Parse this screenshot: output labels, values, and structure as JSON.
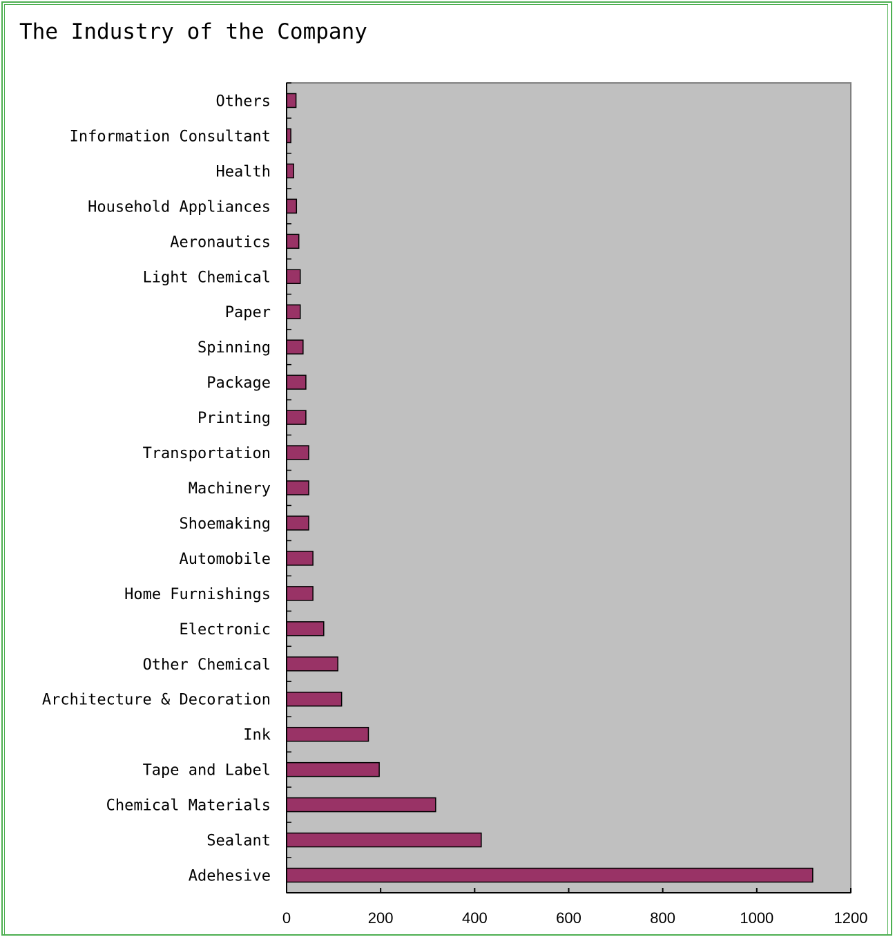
{
  "chart_data": {
    "type": "bar",
    "orientation": "horizontal",
    "title": "The Industry of the Company",
    "xlabel": "",
    "ylabel": "",
    "xlim": [
      0,
      1200
    ],
    "x_ticks": [
      0,
      200,
      400,
      600,
      800,
      1000,
      1200
    ],
    "grid": false,
    "legend": "none",
    "colors": {
      "bar": "#993366",
      "plot_background": "#c0c0c0",
      "frame": "#4caf50"
    },
    "categories": [
      "Others",
      "Information Consultant",
      "Health",
      "Household Appliances",
      "Aeronautics",
      "Light Chemical",
      "Paper",
      "Spinning",
      "Package",
      "Printing",
      "Transportation",
      "Machinery",
      "Shoemaking",
      "Automobile",
      "Home Furnishings",
      "Electronic",
      "Other Chemical",
      "Architecture & Decoration",
      "Ink",
      "Tape and Label",
      "Chemical Materials",
      "Sealant",
      "Adehesive"
    ],
    "values": [
      20,
      9,
      15,
      21,
      26,
      29,
      29,
      35,
      41,
      41,
      47,
      47,
      47,
      56,
      56,
      79,
      109,
      117,
      174,
      197,
      317,
      414,
      1119
    ]
  }
}
